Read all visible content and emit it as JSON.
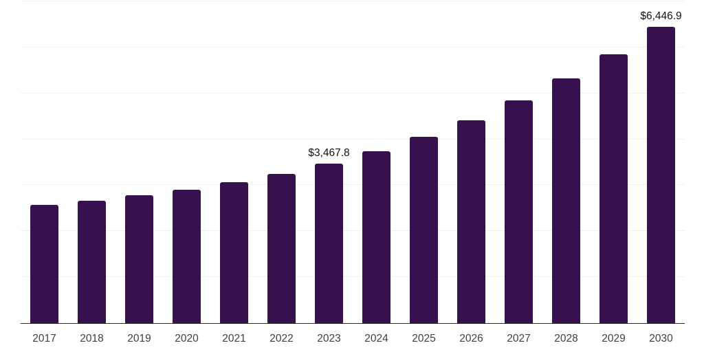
{
  "chart_data": {
    "type": "bar",
    "title": "",
    "xlabel": "",
    "ylabel": "",
    "categories": [
      "2017",
      "2018",
      "2019",
      "2020",
      "2021",
      "2022",
      "2023",
      "2024",
      "2025",
      "2026",
      "2027",
      "2028",
      "2029",
      "2030"
    ],
    "values": [
      2580,
      2670,
      2785,
      2905,
      3070,
      3250,
      3467.8,
      3735,
      4050,
      4420,
      4845,
      5330,
      5850,
      6446.9
    ],
    "value_labels": [
      null,
      null,
      null,
      null,
      null,
      null,
      "$3,467.8",
      null,
      null,
      null,
      null,
      null,
      null,
      "$6,446.9"
    ],
    "ylim": [
      0,
      7000
    ],
    "grid_step": 1000,
    "grid_visible": true,
    "legend_position": "none",
    "colors": {
      "bar": "#36114d",
      "gridline": "#efefef",
      "axis_line": "#2b2b2b",
      "tick_text": "#404040",
      "data_label_text": "#111111",
      "background": "#ffffff"
    }
  }
}
